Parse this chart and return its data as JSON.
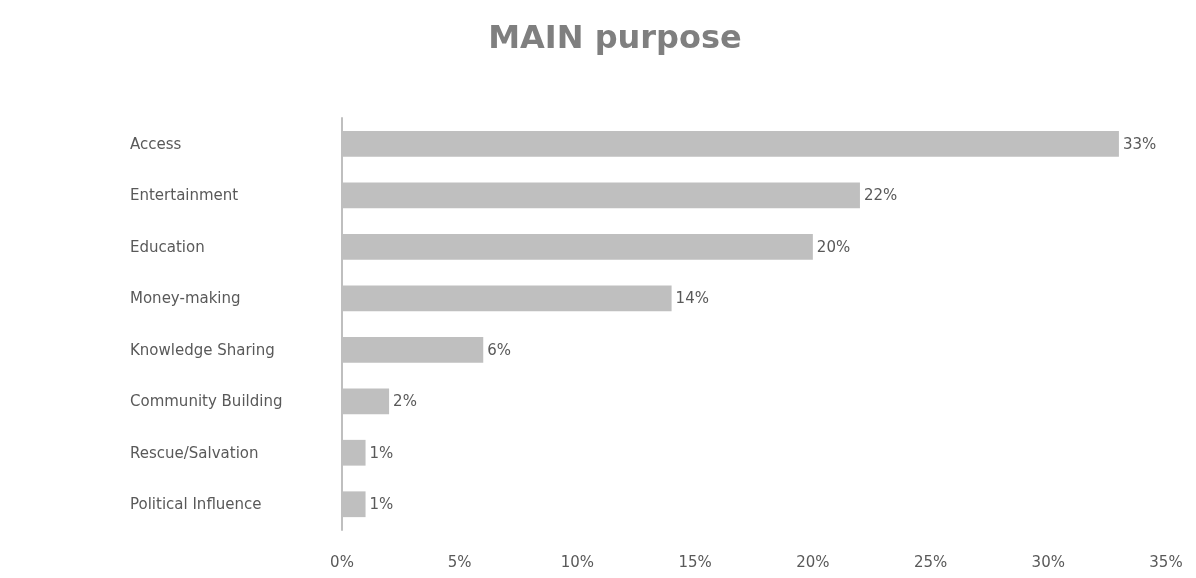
{
  "chart_data": {
    "type": "bar",
    "orientation": "horizontal",
    "title": "MAIN purpose",
    "categories": [
      "Access",
      "Entertainment",
      "Education",
      "Money-making",
      "Knowledge Sharing",
      "Community Building",
      "Rescue/Salvation",
      "Political Influence"
    ],
    "values": [
      33,
      22,
      20,
      14,
      6,
      2,
      1,
      1
    ],
    "value_labels": [
      "33%",
      "22%",
      "20%",
      "14%",
      "6%",
      "2%",
      "1%",
      "1%"
    ],
    "color": "#bfbfbf",
    "xlim": [
      0,
      35
    ],
    "xticks": [
      {
        "value": 0,
        "label": "0%"
      },
      {
        "value": 5,
        "label": "5%"
      },
      {
        "value": 10,
        "label": "10%"
      },
      {
        "value": 15,
        "label": "15%"
      },
      {
        "value": 20,
        "label": "20%"
      },
      {
        "value": 25,
        "label": "25%"
      },
      {
        "value": 30,
        "label": "30%"
      },
      {
        "value": 35,
        "label": "35%"
      }
    ],
    "grid": false
  }
}
